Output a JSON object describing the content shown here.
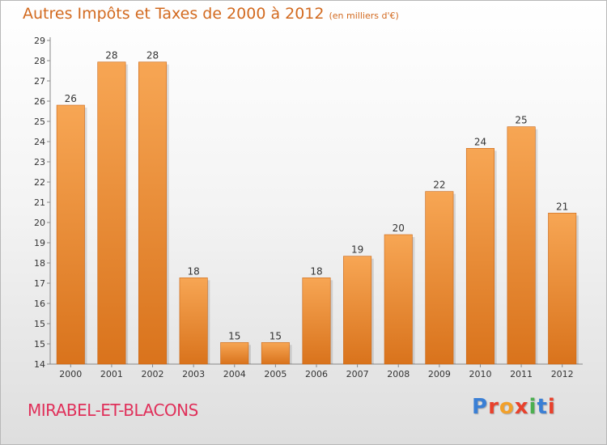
{
  "title": "Autres Impôts et Taxes de 2000 à 2012",
  "unit": "(en milliers d'€)",
  "commune": "MIRABEL-ET-BLACONS",
  "logo": {
    "text": "Proxiti",
    "letter_colors": [
      "#3a7fd5",
      "#e8412c",
      "#f2a02a",
      "#e8412c",
      "#4caf50",
      "#3a7fd5",
      "#e8412c"
    ]
  },
  "colors": {
    "bar_light": "#f7a654",
    "bar_dark": "#d9731c",
    "title": "#d2691e",
    "commune": "#e0305a"
  },
  "chart_data": {
    "type": "bar",
    "title": "Autres Impôts et Taxes de 2000 à 2012",
    "subtitle": "(en milliers d'€)",
    "categories": [
      "2000",
      "2001",
      "2002",
      "2003",
      "2004",
      "2005",
      "2006",
      "2007",
      "2008",
      "2009",
      "2010",
      "2011",
      "2012"
    ],
    "values": [
      26,
      28,
      28,
      18,
      15,
      15,
      18,
      19,
      20,
      22,
      24,
      25,
      21
    ],
    "ylim": [
      14,
      29
    ],
    "yticks": [
      "14",
      "15",
      "15",
      "16",
      "17",
      "18",
      "19",
      "20",
      "21",
      "22",
      "23",
      "24",
      "25",
      "26",
      "27",
      "28",
      "29"
    ],
    "xlabel": "",
    "ylabel": "",
    "grid": false,
    "legend": "none"
  }
}
